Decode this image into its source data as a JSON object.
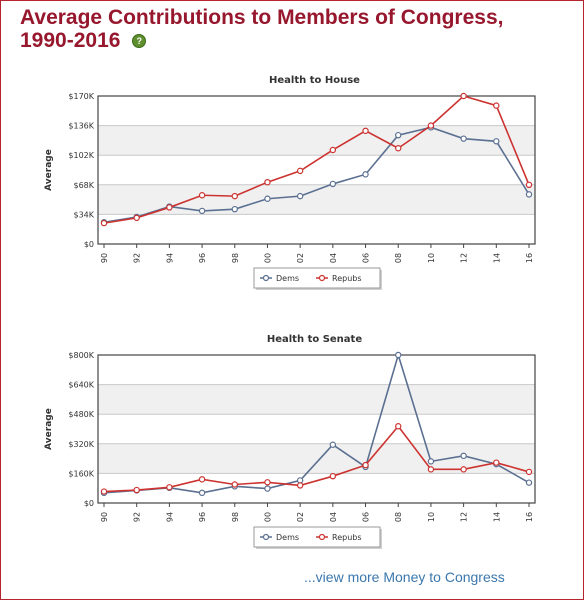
{
  "header": {
    "title_line1": "Average Contributions to Members of Congress,",
    "title_line2": "1990-2016",
    "help_glyph": "?"
  },
  "footer": {
    "more_link": "...view more Money to Congress"
  },
  "colors": {
    "title": "#97172d",
    "dems": "#5b7091",
    "repubs": "#cc3330",
    "link": "#3b77ad"
  },
  "chart_data": [
    {
      "type": "line",
      "title": "Health to House",
      "xlabel": "",
      "ylabel": "Average",
      "categories": [
        "90",
        "92",
        "94",
        "96",
        "98",
        "00",
        "02",
        "04",
        "06",
        "08",
        "10",
        "12",
        "14",
        "16"
      ],
      "ylim": [
        0,
        170000
      ],
      "yticks": [
        0,
        34000,
        68000,
        102000,
        136000,
        170000
      ],
      "ytick_labels": [
        "$0",
        "$34K",
        "$68K",
        "$102K",
        "$136K",
        "$170K"
      ],
      "grid": true,
      "legend_position": "bottom-center",
      "series": [
        {
          "name": "Dems",
          "color": "#5b7091",
          "values": [
            25000,
            31000,
            43000,
            38000,
            40000,
            52000,
            55000,
            69000,
            80000,
            125000,
            134000,
            121000,
            118000,
            57000
          ]
        },
        {
          "name": "Repubs",
          "color": "#cc3330",
          "values": [
            24000,
            30000,
            42000,
            56000,
            55000,
            71000,
            84000,
            108000,
            130000,
            110000,
            136000,
            170000,
            159000,
            68000
          ]
        }
      ]
    },
    {
      "type": "line",
      "title": "Health to Senate",
      "xlabel": "",
      "ylabel": "Average",
      "categories": [
        "90",
        "92",
        "94",
        "96",
        "98",
        "00",
        "02",
        "04",
        "06",
        "08",
        "10",
        "12",
        "14",
        "16"
      ],
      "ylim": [
        0,
        800000
      ],
      "yticks": [
        0,
        160000,
        320000,
        480000,
        640000,
        800000
      ],
      "ytick_labels": [
        "$0",
        "$160K",
        "$320K",
        "$480K",
        "$640K",
        "$800K"
      ],
      "grid": true,
      "legend_position": "bottom-center",
      "series": [
        {
          "name": "Dems",
          "color": "#5b7091",
          "values": [
            55000,
            68000,
            82000,
            55000,
            90000,
            78000,
            122000,
            315000,
            195000,
            800000,
            225000,
            255000,
            210000,
            110000
          ]
        },
        {
          "name": "Repubs",
          "color": "#cc3330",
          "values": [
            62000,
            70000,
            85000,
            128000,
            100000,
            112000,
            95000,
            145000,
            205000,
            415000,
            182000,
            182000,
            218000,
            168000
          ]
        }
      ]
    }
  ]
}
